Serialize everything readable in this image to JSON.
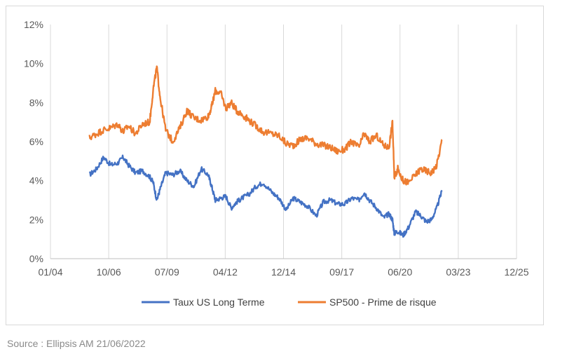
{
  "chart_data": {
    "type": "line",
    "title": "",
    "xlabel": "",
    "ylabel": "",
    "x_tick_labels": [
      "01/04",
      "10/06",
      "07/09",
      "04/12",
      "12/14",
      "09/17",
      "06/20",
      "03/23",
      "12/25"
    ],
    "y_tick_labels": [
      "0%",
      "2%",
      "4%",
      "6%",
      "8%",
      "10%",
      "12%"
    ],
    "ylim": [
      0,
      12
    ],
    "xlim": [
      "2004-01",
      "2025-12"
    ],
    "grid": "vertical",
    "legend_position": "bottom",
    "x": [
      "2005-11",
      "2006-03",
      "2006-07",
      "2006-11",
      "2007-03",
      "2007-06",
      "2007-09",
      "2008-01",
      "2008-05",
      "2008-09",
      "2008-11",
      "2009-01",
      "2009-03",
      "2009-06",
      "2009-10",
      "2010-02",
      "2010-06",
      "2010-10",
      "2011-02",
      "2011-06",
      "2011-08",
      "2011-10",
      "2012-01",
      "2012-04",
      "2012-07",
      "2012-10",
      "2013-01",
      "2013-05",
      "2013-09",
      "2014-01",
      "2014-06",
      "2014-10",
      "2015-02",
      "2015-06",
      "2015-10",
      "2016-02",
      "2016-07",
      "2016-11",
      "2017-03",
      "2017-07",
      "2017-11",
      "2018-03",
      "2018-07",
      "2018-10",
      "2019-01",
      "2019-05",
      "2019-09",
      "2019-12",
      "2020-02",
      "2020-03",
      "2020-05",
      "2020-08",
      "2020-11",
      "2021-03",
      "2021-06",
      "2021-09",
      "2021-12",
      "2022-03",
      "2022-06"
    ],
    "series": [
      {
        "name": "Taux US Long Terme",
        "color": "#4472c4",
        "values": [
          4.3,
          4.6,
          5.2,
          4.8,
          4.9,
          5.2,
          4.8,
          4.4,
          4.5,
          4.2,
          3.9,
          3.0,
          3.6,
          4.4,
          4.3,
          4.5,
          4.0,
          3.7,
          4.6,
          4.3,
          3.7,
          3.0,
          3.1,
          3.2,
          2.6,
          2.9,
          3.1,
          3.3,
          3.7,
          3.9,
          3.4,
          3.1,
          2.5,
          3.1,
          2.9,
          2.7,
          2.2,
          2.9,
          3.0,
          2.8,
          2.8,
          3.1,
          3.0,
          3.4,
          3.0,
          2.6,
          2.1,
          2.3,
          2.0,
          1.3,
          1.4,
          1.2,
          1.6,
          2.4,
          2.2,
          1.9,
          2.0,
          2.6,
          3.5
        ]
      },
      {
        "name": "SP500 - Prime de risque",
        "color": "#ed7d31",
        "values": [
          6.2,
          6.4,
          6.6,
          6.7,
          6.9,
          6.5,
          6.8,
          6.4,
          6.9,
          7.0,
          8.7,
          9.8,
          8.2,
          6.6,
          6.0,
          6.7,
          7.6,
          7.2,
          7.1,
          7.3,
          7.8,
          8.6,
          8.5,
          7.7,
          8.0,
          7.6,
          7.4,
          7.1,
          6.8,
          6.5,
          6.4,
          6.3,
          5.9,
          5.8,
          6.1,
          6.2,
          5.9,
          5.8,
          5.7,
          5.5,
          5.6,
          6.0,
          5.7,
          6.4,
          6.0,
          6.3,
          5.8,
          5.7,
          7.0,
          4.2,
          4.6,
          4.0,
          3.9,
          4.3,
          4.6,
          4.5,
          4.4,
          4.8,
          6.1
        ]
      }
    ]
  },
  "legend": {
    "series_1": "Taux US Long Terme",
    "series_2": "SP500 - Prime de risque"
  },
  "footer": {
    "source": "Source : Ellipsis AM 21/06/2022"
  }
}
